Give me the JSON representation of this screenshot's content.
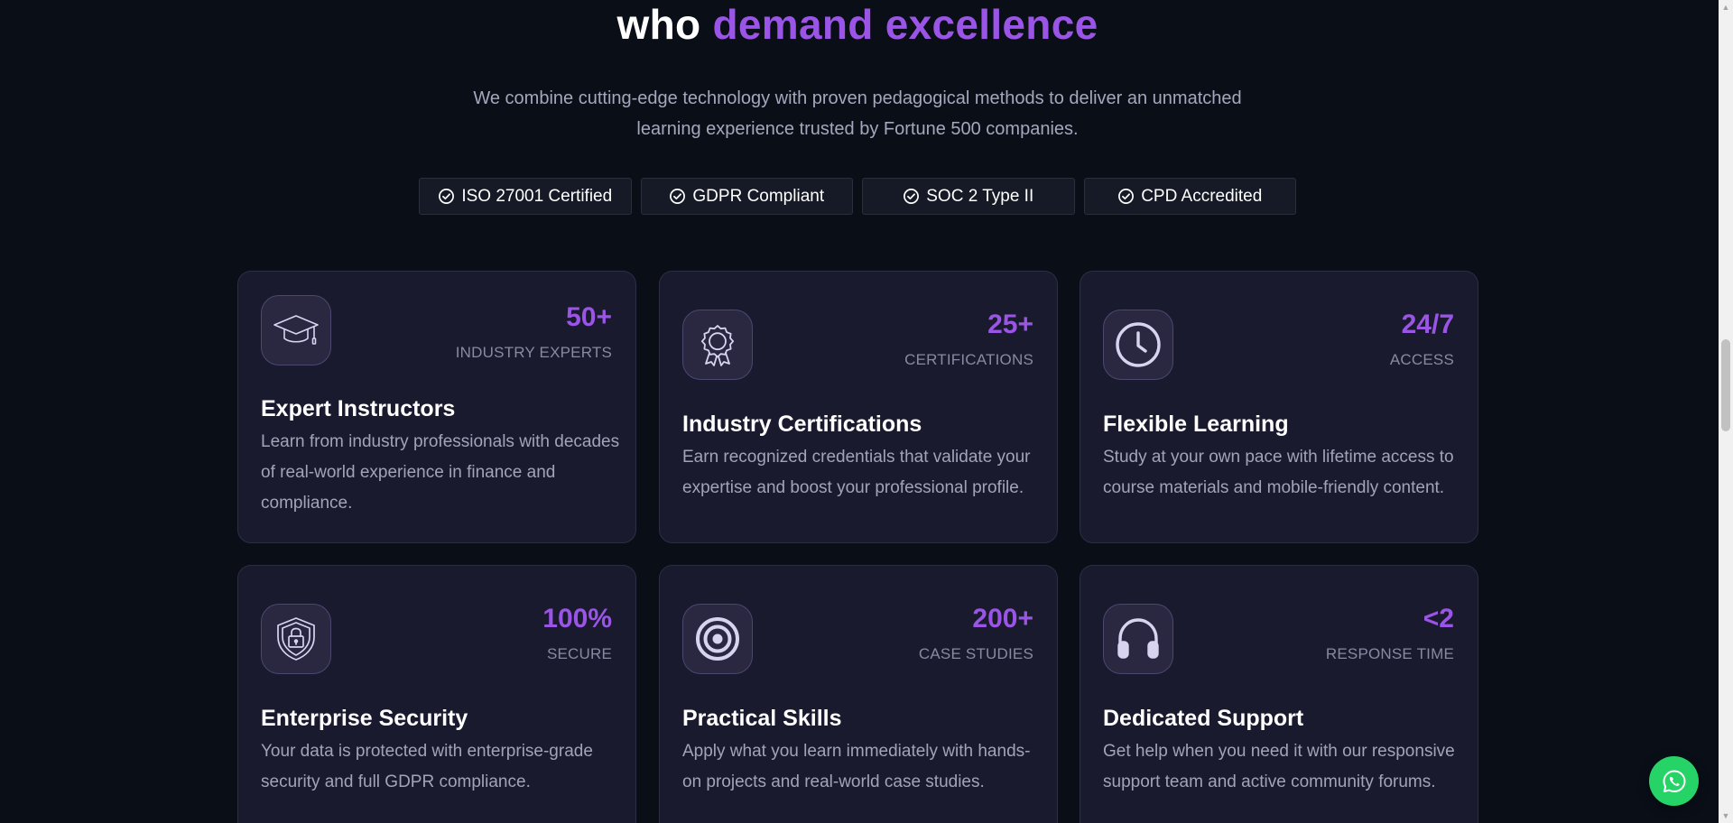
{
  "heading": {
    "part1": "who ",
    "accent": "demand excellence"
  },
  "subtitle": "We combine cutting-edge technology with proven pedagogical methods to deliver an unmatched learning experience trusted by Fortune 500 companies.",
  "badges": [
    {
      "label": "ISO 27001 Certified",
      "icon": "check-circle-icon"
    },
    {
      "label": "GDPR Compliant",
      "icon": "check-circle-icon"
    },
    {
      "label": "SOC 2 Type II",
      "icon": "check-circle-icon"
    },
    {
      "label": "CPD Accredited",
      "icon": "check-circle-icon"
    }
  ],
  "cards": [
    {
      "icon": "graduation-cap-icon",
      "value": "50+",
      "label": "INDUSTRY EXPERTS",
      "title": "Expert Instructors",
      "description": "Learn from industry professionals with decades of real-world experience in finance and compliance."
    },
    {
      "icon": "award-icon",
      "value": "25+",
      "label": "CERTIFICATIONS",
      "title": "Industry Certifications",
      "description": "Earn recognized credentials that validate your expertise and boost your professional profile."
    },
    {
      "icon": "clock-icon",
      "value": "24/7",
      "label": "ACCESS",
      "title": "Flexible Learning",
      "description": "Study at your own pace with lifetime access to course materials and mobile-friendly content."
    },
    {
      "icon": "shield-lock-icon",
      "value": "100%",
      "label": "SECURE",
      "title": "Enterprise Security",
      "description": "Your data is protected with enterprise-grade security and full GDPR compliance."
    },
    {
      "icon": "target-icon",
      "value": "200+",
      "label": "CASE STUDIES",
      "title": "Practical Skills",
      "description": "Apply what you learn immediately with hands-on projects and real-world case studies."
    },
    {
      "icon": "headphones-icon",
      "value": "<2",
      "label": "RESPONSE TIME",
      "title": "Dedicated Support",
      "description": "Get help when you need it with our responsive support team and active community forums."
    }
  ],
  "chat_button": {
    "icon": "whatsapp-icon"
  },
  "colors": {
    "background": "#0a0e17",
    "accent": "#9a55e6",
    "card": "#1a1a2e",
    "chat": "#25d366"
  }
}
